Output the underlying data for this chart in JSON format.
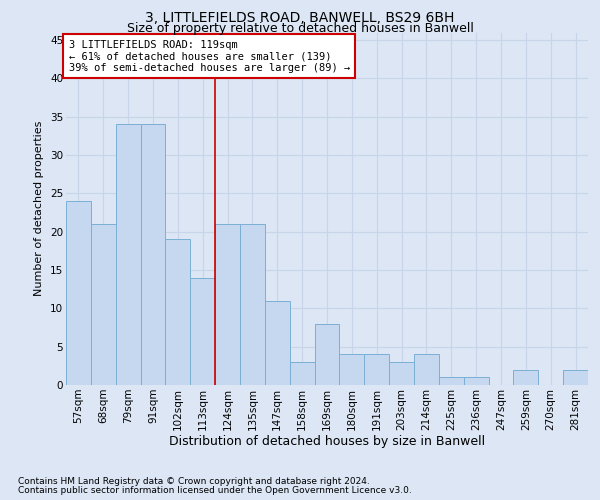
{
  "title1": "3, LITTLEFIELDS ROAD, BANWELL, BS29 6BH",
  "title2": "Size of property relative to detached houses in Banwell",
  "xlabel": "Distribution of detached houses by size in Banwell",
  "ylabel": "Number of detached properties",
  "footnote1": "Contains HM Land Registry data © Crown copyright and database right 2024.",
  "footnote2": "Contains public sector information licensed under the Open Government Licence v3.0.",
  "categories": [
    "57sqm",
    "68sqm",
    "79sqm",
    "91sqm",
    "102sqm",
    "113sqm",
    "124sqm",
    "135sqm",
    "147sqm",
    "158sqm",
    "169sqm",
    "180sqm",
    "191sqm",
    "203sqm",
    "214sqm",
    "225sqm",
    "236sqm",
    "247sqm",
    "259sqm",
    "270sqm",
    "281sqm"
  ],
  "values": [
    24,
    21,
    34,
    34,
    19,
    14,
    21,
    21,
    11,
    3,
    8,
    4,
    4,
    3,
    4,
    1,
    1,
    0,
    2,
    0,
    2
  ],
  "bar_color": "#c5d8f0",
  "bar_edge_color": "#7aafd4",
  "grid_color": "#c8d4e8",
  "background_color": "#dce6f5",
  "annotation_box_color": "#ffffff",
  "annotation_border_color": "#cc0000",
  "vline_color": "#cc0000",
  "vline_x": 5.5,
  "annotation_text1": "3 LITTLEFIELDS ROAD: 119sqm",
  "annotation_text2": "← 61% of detached houses are smaller (139)",
  "annotation_text3": "39% of semi-detached houses are larger (89) →",
  "ylim": [
    0,
    46
  ],
  "yticks": [
    0,
    5,
    10,
    15,
    20,
    25,
    30,
    35,
    40,
    45
  ],
  "title1_fontsize": 10,
  "title2_fontsize": 9,
  "xlabel_fontsize": 9,
  "ylabel_fontsize": 8,
  "tick_fontsize": 7.5,
  "annotation_fontsize": 7.5,
  "footnote_fontsize": 6.5
}
